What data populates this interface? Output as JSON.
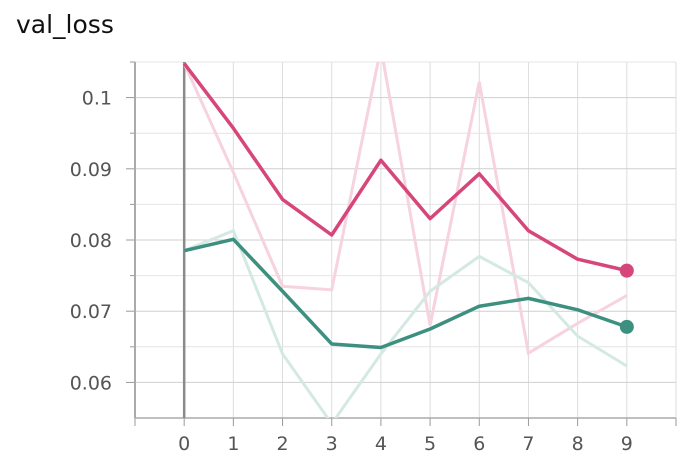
{
  "chart_data": {
    "type": "line",
    "title": "val_loss",
    "xlabel": "",
    "ylabel": "",
    "x": [
      0,
      1,
      2,
      3,
      4,
      5,
      6,
      7,
      8,
      9
    ],
    "x_ticks": [
      "0",
      "1",
      "2",
      "3",
      "4",
      "5",
      "6",
      "7",
      "8",
      "9"
    ],
    "y_ticks": [
      "0.06",
      "0.07",
      "0.08",
      "0.09",
      "0.1"
    ],
    "xlim": [
      -1,
      10
    ],
    "ylim": [
      0.055,
      0.105
    ],
    "grid": true,
    "series": [
      {
        "color": "#d6467a",
        "raw_color": "#f6d3de",
        "raw": [
          0.1048,
          0.0895,
          0.0735,
          0.073,
          0.107,
          0.068,
          0.1022,
          0.0641,
          0.0683,
          0.0722
        ],
        "values": [
          0.1048,
          0.0957,
          0.0857,
          0.0807,
          0.0912,
          0.083,
          0.0893,
          0.0813,
          0.0773,
          0.0757
        ]
      },
      {
        "color": "#3d8f80",
        "raw_color": "#d5e9e4",
        "raw": [
          0.0785,
          0.0813,
          0.064,
          0.0542,
          0.064,
          0.0728,
          0.0777,
          0.074,
          0.0665,
          0.0623
        ],
        "values": [
          0.0785,
          0.0801,
          0.0728,
          0.0654,
          0.0649,
          0.0675,
          0.0707,
          0.0718,
          0.0702,
          0.0678
        ]
      }
    ]
  }
}
